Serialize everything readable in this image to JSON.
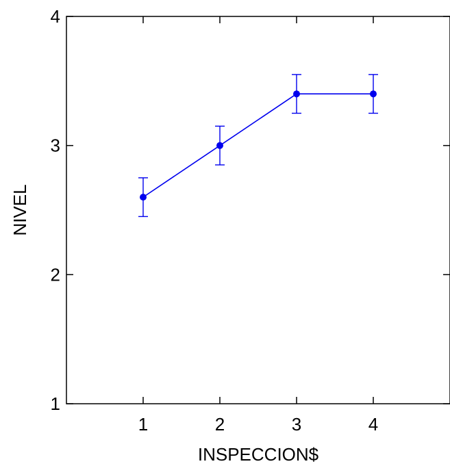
{
  "chart_data": {
    "type": "line",
    "xlabel": "INSPECCION$",
    "ylabel": "NIVEL",
    "categories": [
      "1",
      "2",
      "3",
      "4"
    ],
    "x": [
      1,
      2,
      3,
      4
    ],
    "values": [
      2.6,
      3.0,
      3.4,
      3.4
    ],
    "error_low": [
      2.45,
      2.85,
      3.25,
      3.25
    ],
    "error_high": [
      2.75,
      3.15,
      3.55,
      3.55
    ],
    "xlim": [
      0,
      5
    ],
    "ylim": [
      1,
      4
    ],
    "xticks": [
      1,
      2,
      3,
      4
    ],
    "yticks": [
      1,
      2,
      3,
      4
    ],
    "grid": false,
    "series_color": "#0000ee"
  }
}
